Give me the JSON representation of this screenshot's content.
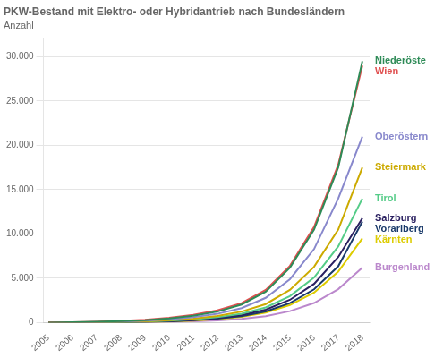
{
  "chart_data": {
    "type": "line",
    "title": "PKW-Bestand mit Elektro- oder Hybridantrieb nach Bundesländern",
    "subtitle": "Anzahl",
    "x": [
      2005,
      2006,
      2007,
      2008,
      2009,
      2010,
      2011,
      2012,
      2013,
      2014,
      2015,
      2016,
      2017,
      2018
    ],
    "series": [
      {
        "name": "Niederöste",
        "color": "#2e8b57",
        "values": [
          10,
          40,
          90,
          170,
          290,
          480,
          780,
          1250,
          2050,
          3500,
          6200,
          10500,
          17500,
          29500
        ]
      },
      {
        "name": "Wien",
        "color": "#e05050",
        "values": [
          15,
          50,
          110,
          200,
          330,
          550,
          880,
          1400,
          2200,
          3700,
          6400,
          10800,
          17800,
          29000
        ]
      },
      {
        "name": "Oberöstern",
        "color": "#8888cc",
        "values": [
          8,
          30,
          70,
          130,
          220,
          370,
          620,
          1000,
          1650,
          2800,
          4900,
          8300,
          14000,
          21000
        ]
      },
      {
        "name": "Steiermark",
        "color": "#ccaa00",
        "values": [
          6,
          22,
          50,
          95,
          160,
          270,
          460,
          750,
          1250,
          2100,
          3700,
          6300,
          10500,
          17500
        ]
      },
      {
        "name": "Tirol",
        "color": "#55cc88",
        "values": [
          5,
          18,
          40,
          78,
          130,
          220,
          375,
          620,
          1020,
          1720,
          3000,
          5100,
          8600,
          14000
        ]
      },
      {
        "name": "Salzburg",
        "color": "#2a2060",
        "values": [
          4,
          15,
          34,
          65,
          110,
          185,
          315,
          525,
          870,
          1470,
          2580,
          4380,
          7400,
          11800
        ]
      },
      {
        "name": "Vorarlberg",
        "color": "#1a3a6a",
        "values": [
          3,
          12,
          28,
          55,
          93,
          157,
          268,
          448,
          745,
          1260,
          2210,
          3760,
          6360,
          11400
        ]
      },
      {
        "name": "Kärnten",
        "color": "#ddcc00",
        "values": [
          3,
          11,
          25,
          48,
          82,
          138,
          237,
          398,
          665,
          1130,
          1990,
          3390,
          5750,
          9500
        ]
      },
      {
        "name": "Burgenland",
        "color": "#bb88cc",
        "values": [
          2,
          7,
          16,
          30,
          52,
          88,
          152,
          257,
          432,
          735,
          1300,
          2220,
          3780,
          6200
        ]
      }
    ],
    "xlim": [
      2004.8,
      2018.3
    ],
    "xticks": [
      2005,
      2006,
      2007,
      2008,
      2009,
      2010,
      2011,
      2012,
      2013,
      2014,
      2015,
      2016,
      2017,
      2018
    ],
    "ylim": [
      0,
      32000
    ],
    "yticks": [
      0,
      {
        "value": 5000,
        "label": "5.000"
      },
      {
        "value": 10000,
        "label": "10.000"
      },
      {
        "value": 15000,
        "label": "15.000"
      },
      {
        "value": 20000,
        "label": "20.000"
      },
      {
        "value": 25000,
        "label": "25.000"
      },
      {
        "value": 30000,
        "label": "30.000"
      }
    ],
    "grid": true
  }
}
